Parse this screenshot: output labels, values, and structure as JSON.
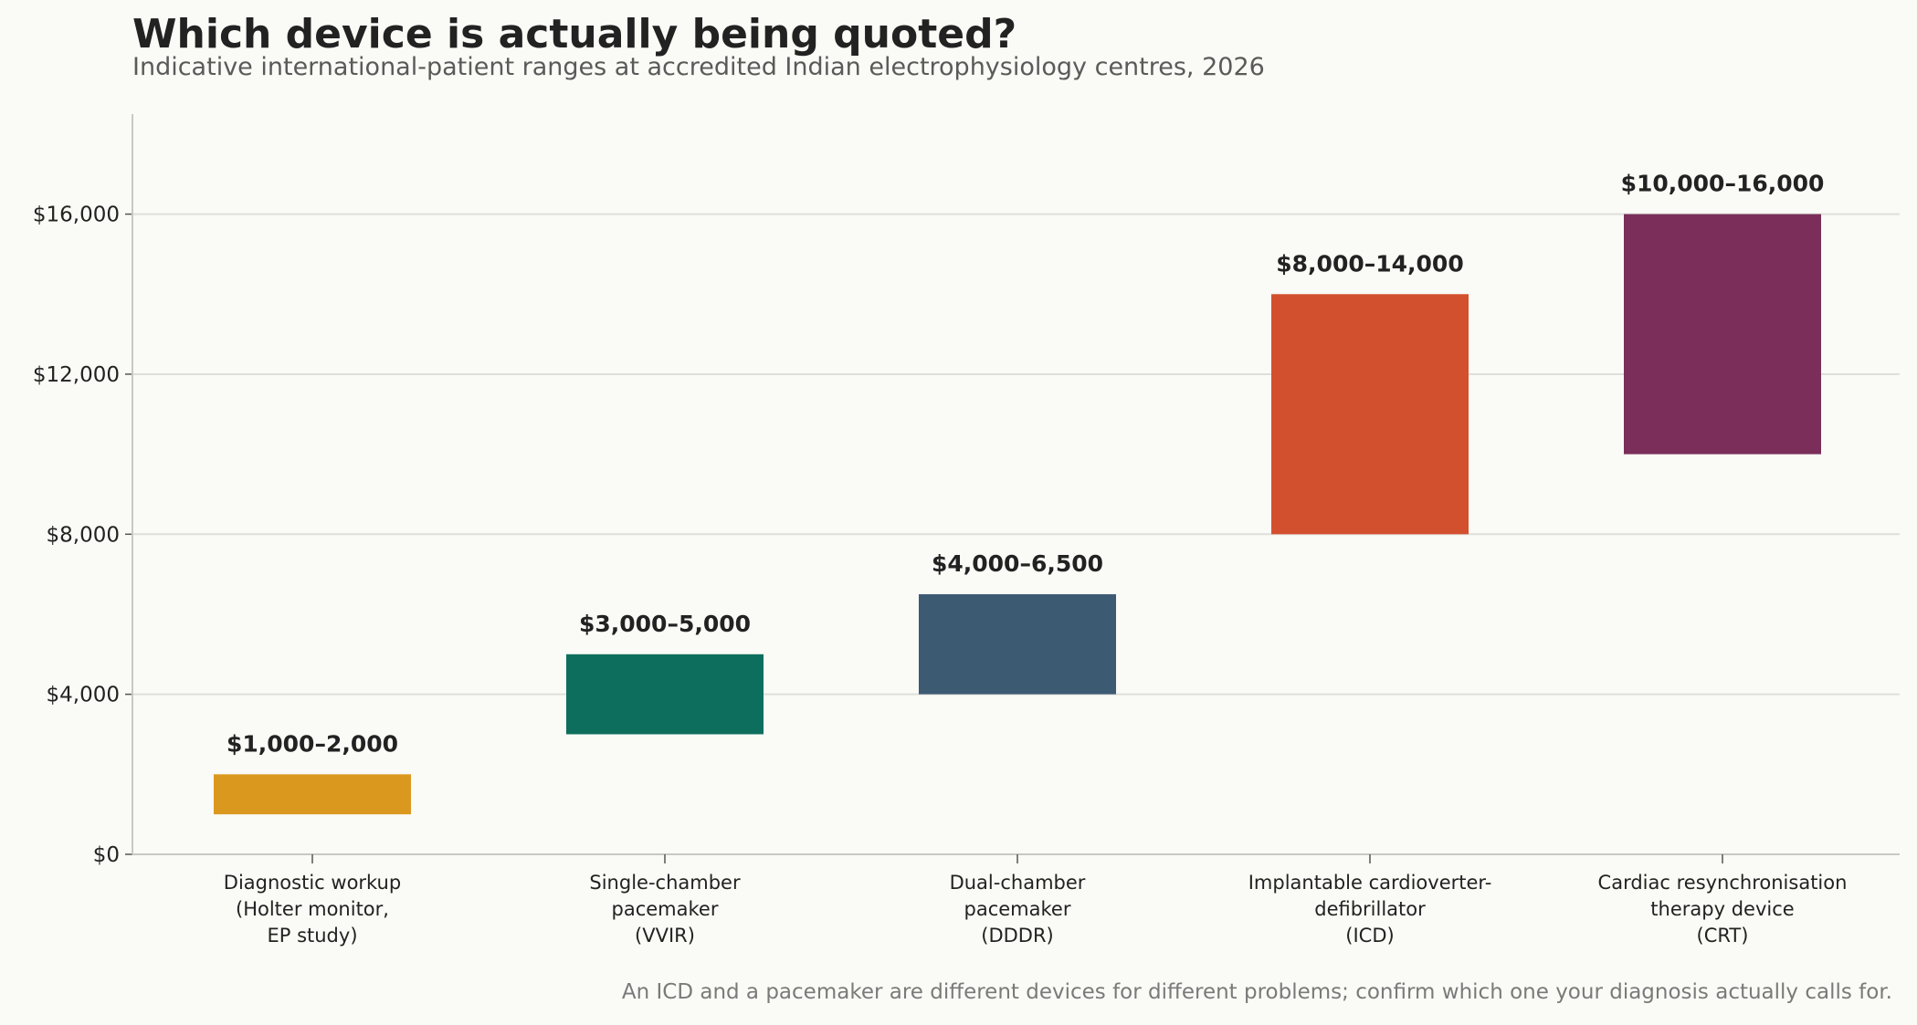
{
  "title": "Which device is actually being quoted?",
  "subtitle": "Indicative international-patient ranges at accredited Indian electrophysiology centres, 2026",
  "footnote": "An ICD and a pacemaker are different devices for different problems; confirm which one your diagnosis actually calls for.",
  "chart_data": {
    "type": "bar",
    "subtype": "floating-range",
    "categories": [
      [
        "Diagnostic workup",
        "(Holter monitor,",
        "EP study)"
      ],
      [
        "Single-chamber",
        "pacemaker",
        "(VVIR)"
      ],
      [
        "Dual-chamber",
        "pacemaker",
        "(DDDR)"
      ],
      [
        "Implantable cardioverter-",
        "defibrillator",
        "(ICD)"
      ],
      [
        "Cardiac resynchronisation",
        "therapy device",
        "(CRT)"
      ]
    ],
    "low": [
      1000,
      3000,
      4000,
      8000,
      10000
    ],
    "high": [
      2000,
      5000,
      6500,
      14000,
      16000
    ],
    "data_labels": [
      "$1,000–2,000",
      "$3,000–5,000",
      "$4,000–6,500",
      "$8,000–14,000",
      "$10,000–16,000"
    ],
    "colors": [
      "#db981f",
      "#0e6e5e",
      "#3d5a73",
      "#d3502e",
      "#7a2e59"
    ],
    "yticks": [
      0,
      4000,
      8000,
      12000,
      16000
    ],
    "ytick_labels": [
      "$0",
      "$4,000",
      "$8,000",
      "$12,000",
      "$16,000"
    ],
    "ylim": [
      0,
      18500
    ],
    "grid": true,
    "xlabel": "",
    "ylabel": ""
  }
}
